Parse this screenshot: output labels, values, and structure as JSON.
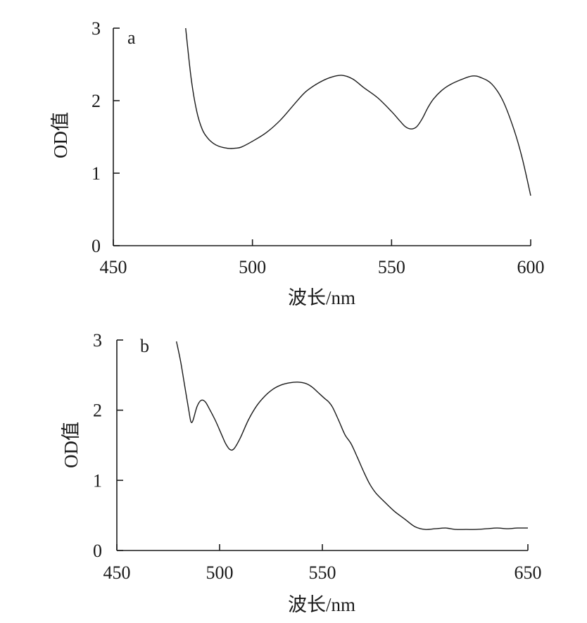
{
  "chart_data": [
    {
      "type": "line",
      "panel_label": "a",
      "xlabel": "波长/nm",
      "ylabel": "OD值",
      "xlim": [
        450,
        600
      ],
      "ylim": [
        0,
        3
      ],
      "xticks": [
        450,
        500,
        550,
        600
      ],
      "yticks": [
        0,
        1,
        2,
        3
      ],
      "grid": false,
      "series": [
        {
          "x": [
            476,
            478,
            480,
            482,
            484,
            486,
            488,
            490,
            492,
            494,
            496,
            500,
            505,
            510,
            515,
            518,
            520,
            524,
            528,
            532,
            536,
            540,
            545,
            550,
            553,
            555,
            557,
            559,
            561,
            563,
            565,
            568,
            571,
            575,
            579,
            582,
            586,
            590,
            594,
            597,
            600
          ],
          "y": [
            3.0,
            2.3,
            1.85,
            1.6,
            1.48,
            1.41,
            1.37,
            1.35,
            1.34,
            1.345,
            1.36,
            1.44,
            1.56,
            1.73,
            1.95,
            2.08,
            2.15,
            2.25,
            2.32,
            2.35,
            2.3,
            2.18,
            2.04,
            1.85,
            1.72,
            1.64,
            1.61,
            1.64,
            1.75,
            1.9,
            2.02,
            2.14,
            2.22,
            2.29,
            2.34,
            2.32,
            2.23,
            2.0,
            1.6,
            1.2,
            0.69
          ]
        }
      ]
    },
    {
      "type": "line",
      "panel_label": "b",
      "xlabel": "波长/nm",
      "ylabel": "OD值",
      "xlim": [
        450,
        650
      ],
      "ylim": [
        0,
        3
      ],
      "xticks": [
        450,
        500,
        550,
        650
      ],
      "yticks": [
        0,
        1,
        2,
        3
      ],
      "grid": false,
      "series": [
        {
          "x": [
            479,
            481,
            483,
            485,
            486,
            487,
            489,
            491,
            493,
            495,
            498,
            501,
            503,
            505,
            507,
            510,
            514,
            518,
            522,
            526,
            530,
            534,
            538,
            542,
            545,
            548,
            551,
            553,
            555,
            558,
            561,
            564,
            567,
            570,
            573,
            576,
            580,
            585,
            590,
            595,
            600,
            605,
            610,
            615,
            620,
            625,
            630,
            635,
            640,
            645,
            650
          ],
          "y": [
            2.98,
            2.7,
            2.35,
            2.0,
            1.84,
            1.85,
            2.05,
            2.14,
            2.12,
            2.02,
            1.85,
            1.65,
            1.52,
            1.44,
            1.45,
            1.6,
            1.86,
            2.06,
            2.2,
            2.3,
            2.36,
            2.39,
            2.4,
            2.38,
            2.33,
            2.25,
            2.17,
            2.12,
            2.04,
            1.85,
            1.65,
            1.52,
            1.33,
            1.13,
            0.95,
            0.82,
            0.7,
            0.56,
            0.45,
            0.34,
            0.3,
            0.31,
            0.32,
            0.3,
            0.3,
            0.3,
            0.31,
            0.32,
            0.31,
            0.32,
            0.32
          ]
        }
      ]
    }
  ]
}
